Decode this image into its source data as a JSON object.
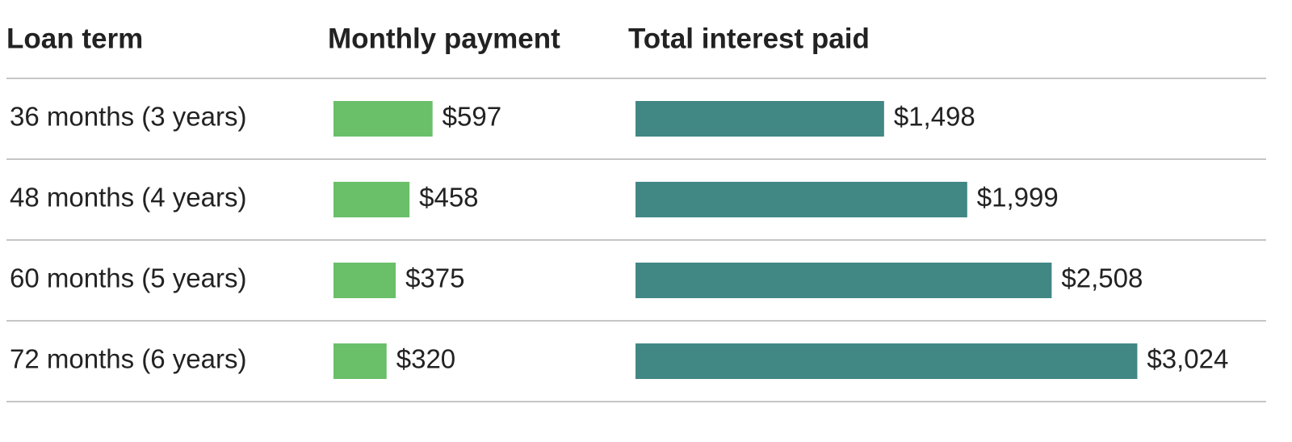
{
  "chart_data": {
    "type": "bar",
    "category_header": "Loan term",
    "categories": [
      "36 months (3 years)",
      "48 months (4 years)",
      "60 months (5 years)",
      "72 months (6 years)"
    ],
    "series": [
      {
        "name": "Monthly payment",
        "color": "#6abf69",
        "values": [
          597,
          458,
          375,
          320
        ],
        "value_labels": [
          "$597",
          "$458",
          "$375",
          "$320"
        ]
      },
      {
        "name": "Total interest paid",
        "color": "#418784",
        "values": [
          1498,
          1999,
          2508,
          3024
        ],
        "value_labels": [
          "$1,498",
          "$1,999",
          "$2,508",
          "$3,024"
        ]
      }
    ]
  }
}
